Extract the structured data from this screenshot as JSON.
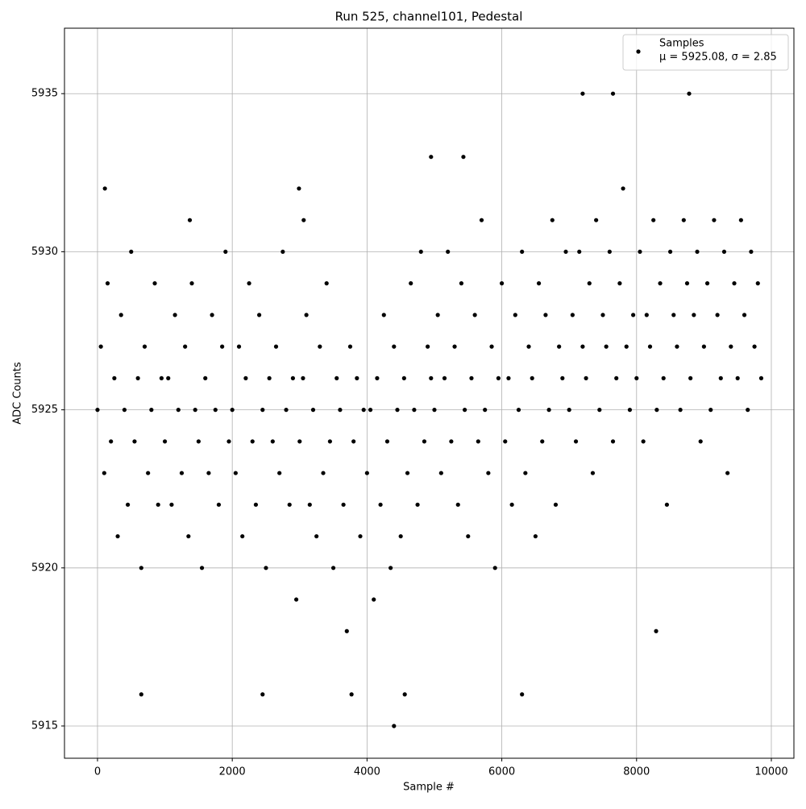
{
  "chart_data": {
    "type": "scatter",
    "title": "Run 525, channel101, Pedestal",
    "x_label": "Sample #",
    "y_label": "ADC Counts",
    "xlim": [
      -490,
      10335
    ],
    "ylim": [
      5913.98,
      5937.07
    ],
    "xticks": [
      0,
      2000,
      4000,
      6000,
      8000,
      10000
    ],
    "yticks": [
      5915,
      5920,
      5925,
      5930,
      5935
    ],
    "grid": true,
    "legend": "upper right",
    "series": [
      {
        "name": "Samples",
        "color": "#000000",
        "x": [
          0,
          50,
          100,
          150,
          200,
          250,
          300,
          350,
          400,
          450,
          500,
          550,
          600,
          650,
          700,
          750,
          800,
          850,
          900,
          950,
          1000,
          1050,
          1100,
          1150,
          1200,
          1250,
          1300,
          1350,
          1400,
          1450,
          1500,
          1550,
          1600,
          1650,
          1700,
          1750,
          1800,
          1850,
          1900,
          1950,
          2000,
          2050,
          2100,
          2150,
          2200,
          2250,
          2300,
          2350,
          2400,
          2450,
          2500,
          2550,
          2600,
          2650,
          2700,
          2750,
          2800,
          2850,
          2900,
          2950,
          3000,
          3050,
          3100,
          3150,
          3200,
          3250,
          3300,
          3350,
          3400,
          3450,
          3500,
          3550,
          3600,
          3650,
          3700,
          3750,
          3800,
          3850,
          3900,
          3950,
          4000,
          4050,
          4100,
          4150,
          4200,
          4250,
          4300,
          4350,
          4400,
          4450,
          4500,
          4550,
          4600,
          4650,
          4700,
          4750,
          4800,
          4850,
          4900,
          4950,
          5000,
          5050,
          5100,
          5150,
          5200,
          5250,
          5300,
          5350,
          5400,
          5450,
          5500,
          5550,
          5600,
          5650,
          5700,
          5750,
          5800,
          5850,
          5900,
          5950,
          6000,
          6050,
          6100,
          6150,
          6200,
          6250,
          6300,
          6350,
          6400,
          6450,
          6500,
          6550,
          6600,
          6650,
          6700,
          6750,
          6800,
          6850,
          6900,
          6950,
          7000,
          7050,
          7100,
          7150,
          7200,
          7250,
          7300,
          7350,
          7400,
          7450,
          7500,
          7550,
          7600,
          7650,
          7700,
          7750,
          7800,
          7850,
          7900,
          7950,
          8000,
          8050,
          8100,
          8150,
          8200,
          8250,
          8300,
          8350,
          8400,
          8450,
          8500,
          8550,
          8600,
          8650,
          8700,
          8750,
          8800,
          8850,
          8900,
          8950,
          9000,
          9050,
          9100,
          9150,
          9200,
          9250,
          9300,
          9350,
          9400,
          9450,
          9500,
          9550,
          9600,
          9650,
          9700,
          9750,
          9800,
          9850,
          110,
          2990,
          4400,
          650,
          2450,
          3770,
          6300,
          7200,
          7650,
          8780,
          4950,
          5430,
          8290,
          4560,
          3060,
          1370
        ],
        "values": [
          5925,
          5927,
          5923,
          5929,
          5924,
          5926,
          5921,
          5928,
          5925,
          5922,
          5930,
          5924,
          5926,
          5920,
          5927,
          5923,
          5925,
          5929,
          5922,
          5926,
          5924,
          5926,
          5922,
          5928,
          5925,
          5923,
          5927,
          5921,
          5929,
          5925,
          5924,
          5920,
          5926,
          5923,
          5928,
          5925,
          5922,
          5927,
          5930,
          5924,
          5925,
          5923,
          5927,
          5921,
          5926,
          5929,
          5924,
          5922,
          5928,
          5925,
          5920,
          5926,
          5924,
          5927,
          5923,
          5930,
          5925,
          5922,
          5926,
          5919,
          5924,
          5926,
          5928,
          5922,
          5925,
          5921,
          5927,
          5923,
          5929,
          5924,
          5920,
          5926,
          5925,
          5922,
          5918,
          5927,
          5924,
          5926,
          5921,
          5925,
          5923,
          5925,
          5919,
          5926,
          5922,
          5928,
          5924,
          5920,
          5927,
          5925,
          5921,
          5926,
          5923,
          5929,
          5925,
          5922,
          5930,
          5924,
          5927,
          5926,
          5925,
          5928,
          5923,
          5926,
          5930,
          5924,
          5927,
          5922,
          5929,
          5925,
          5921,
          5926,
          5928,
          5924,
          5931,
          5925,
          5923,
          5927,
          5920,
          5926,
          5929,
          5924,
          5926,
          5922,
          5928,
          5925,
          5930,
          5923,
          5927,
          5926,
          5921,
          5929,
          5924,
          5928,
          5925,
          5931,
          5922,
          5927,
          5926,
          5930,
          5925,
          5928,
          5924,
          5930,
          5927,
          5926,
          5929,
          5923,
          5931,
          5925,
          5928,
          5927,
          5930,
          5924,
          5926,
          5929,
          5932,
          5927,
          5925,
          5928,
          5926,
          5930,
          5924,
          5928,
          5927,
          5931,
          5925,
          5929,
          5926,
          5922,
          5930,
          5928,
          5927,
          5925,
          5931,
          5929,
          5926,
          5928,
          5930,
          5924,
          5927,
          5929,
          5925,
          5931,
          5928,
          5926,
          5930,
          5923,
          5927,
          5929,
          5926,
          5931,
          5928,
          5925,
          5930,
          5927,
          5929,
          5926,
          5932,
          5932,
          5915,
          5916,
          5916,
          5916,
          5916,
          5935,
          5935,
          5935,
          5933,
          5933,
          5918,
          5916,
          5931,
          5931
        ]
      }
    ],
    "legend_text": "μ = 5925.08, σ = 2.85"
  }
}
